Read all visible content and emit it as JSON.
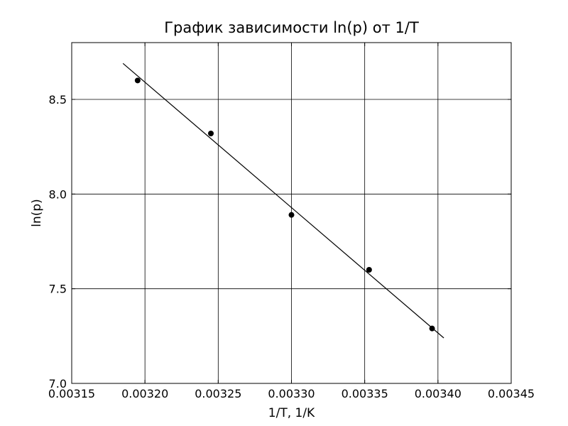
{
  "chart_data": {
    "type": "scatter",
    "title": "График зависимости ln(p) от 1/T",
    "xlabel": "1/T, 1/K",
    "ylabel": "ln(p)",
    "xlim": [
      0.00315,
      0.00345
    ],
    "ylim": [
      7.0,
      8.8
    ],
    "x_ticks": [
      0.00315,
      0.0032,
      0.00325,
      0.0033,
      0.00335,
      0.0034,
      0.00345
    ],
    "x_tick_labels": [
      "0.00315",
      "0.00320",
      "0.00325",
      "0.00330",
      "0.00335",
      "0.00340",
      "0.00345"
    ],
    "y_ticks": [
      7.0,
      7.5,
      8.0,
      8.5
    ],
    "y_tick_labels": [
      "7.0",
      "7.5",
      "8.0",
      "8.5"
    ],
    "grid": true,
    "series": [
      {
        "type": "scatter",
        "x": [
          0.003195,
          0.003245,
          0.0033,
          0.003353,
          0.003396
        ],
        "y": [
          8.6,
          8.32,
          7.89,
          7.6,
          7.29
        ],
        "color": "#000000"
      },
      {
        "type": "line",
        "x": [
          0.003185,
          0.003404
        ],
        "y": [
          8.69,
          7.24
        ],
        "color": "#000000"
      }
    ]
  }
}
